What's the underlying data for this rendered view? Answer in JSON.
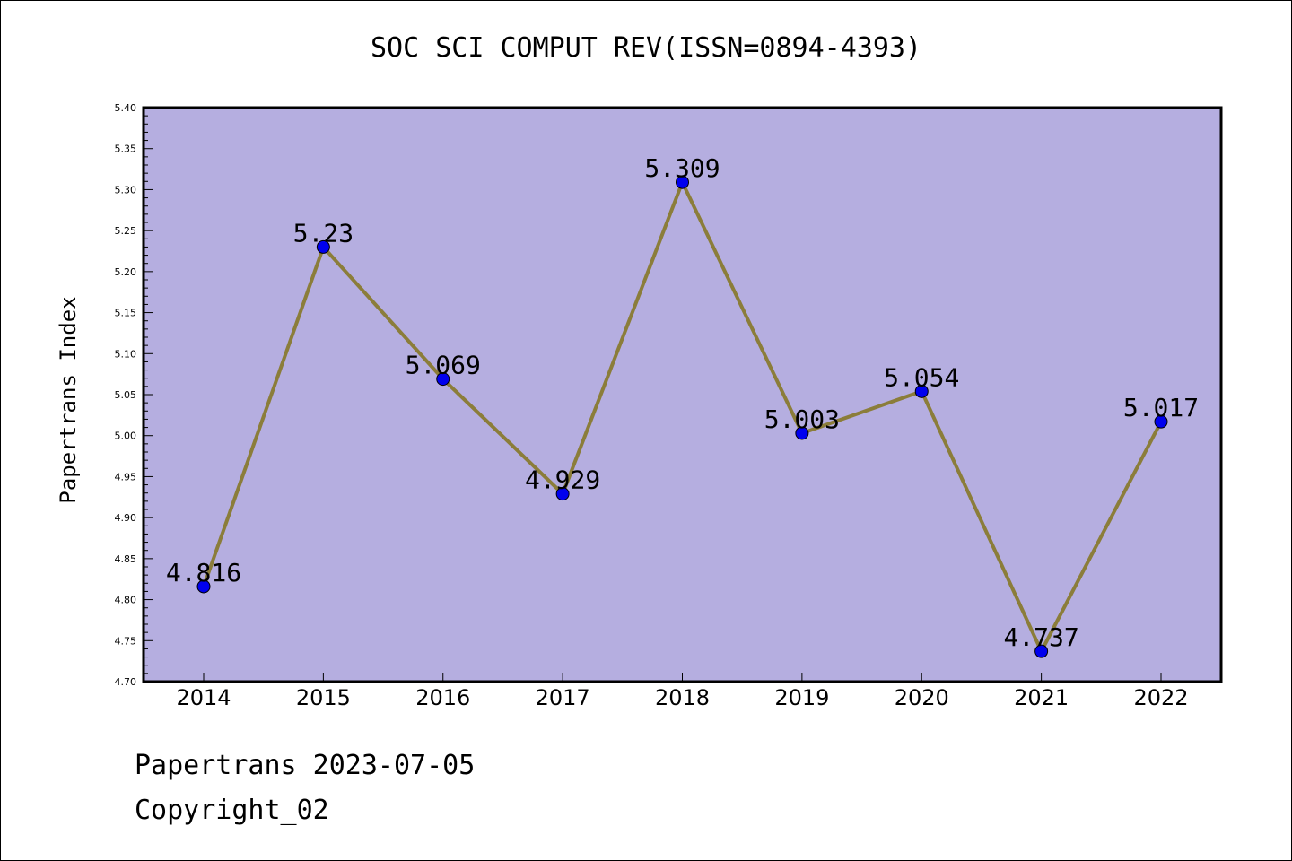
{
  "title": "SOC SCI COMPUT REV(ISSN=0894-4393)",
  "footer": {
    "line1": "Papertrans 2023-07-05",
    "line2": "Copyright_02"
  },
  "colors": {
    "plot_bg": "#b5aee0",
    "line": "#8b7d3a",
    "marker": "#0000ee"
  },
  "chart_data": {
    "type": "line",
    "title": "SOC SCI COMPUT REV(ISSN=0894-4393)",
    "xlabel": "",
    "ylabel": "Papertrans Index",
    "categories": [
      "2014",
      "2015",
      "2016",
      "2017",
      "2018",
      "2019",
      "2020",
      "2021",
      "2022"
    ],
    "series": [
      {
        "values": [
          4.816,
          5.23,
          5.069,
          4.929,
          5.309,
          5.003,
          5.054,
          4.737,
          5.017
        ]
      }
    ],
    "data_labels": [
      "4.816",
      "5.23",
      "5.069",
      "4.929",
      "5.309",
      "5.003",
      "5.054",
      "4.737",
      "5.017"
    ],
    "ylim": [
      4.7,
      5.4
    ],
    "yticks": [
      "4.70",
      "4.75",
      "4.80",
      "4.85",
      "4.90",
      "4.95",
      "5.00",
      "5.05",
      "5.10",
      "5.15",
      "5.20",
      "5.25",
      "5.30",
      "5.35",
      "5.40"
    ],
    "grid": false,
    "legend": "none"
  }
}
